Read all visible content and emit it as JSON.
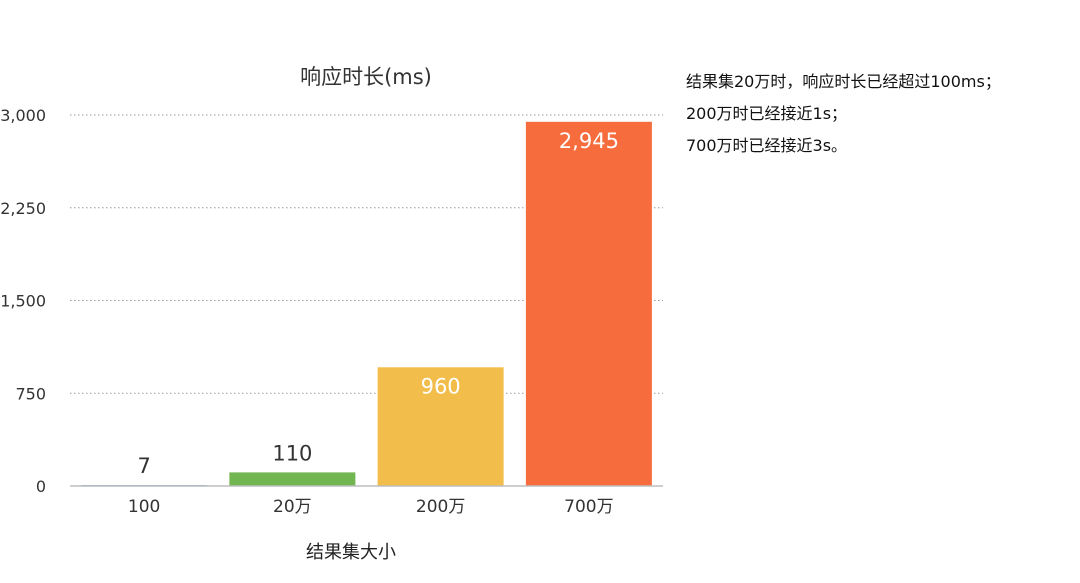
{
  "chart_data": {
    "type": "bar",
    "title": "响应时长(ms)",
    "xlabel": "结果集大小",
    "ylabel": "",
    "categories": [
      "100",
      "20万",
      "200万",
      "700万"
    ],
    "values": [
      7,
      110,
      960,
      2945
    ],
    "data_labels": [
      "7",
      "110",
      "960",
      "2,945"
    ],
    "colors": [
      "#4f95d8",
      "#72b652",
      "#f2bd4b",
      "#f76c3c"
    ],
    "ylim": [
      0,
      3000
    ],
    "yticks": [
      0,
      750,
      1500,
      2250,
      3000
    ],
    "ytick_labels": [
      "0",
      "750",
      "1,500",
      "2,250",
      "3,000"
    ],
    "grid": true,
    "legend": "none"
  },
  "notes": [
    "结果集20万时，响应时长已经超过100ms；",
    "200万时已经接近1s；",
    "700万时已经接近3s。"
  ]
}
